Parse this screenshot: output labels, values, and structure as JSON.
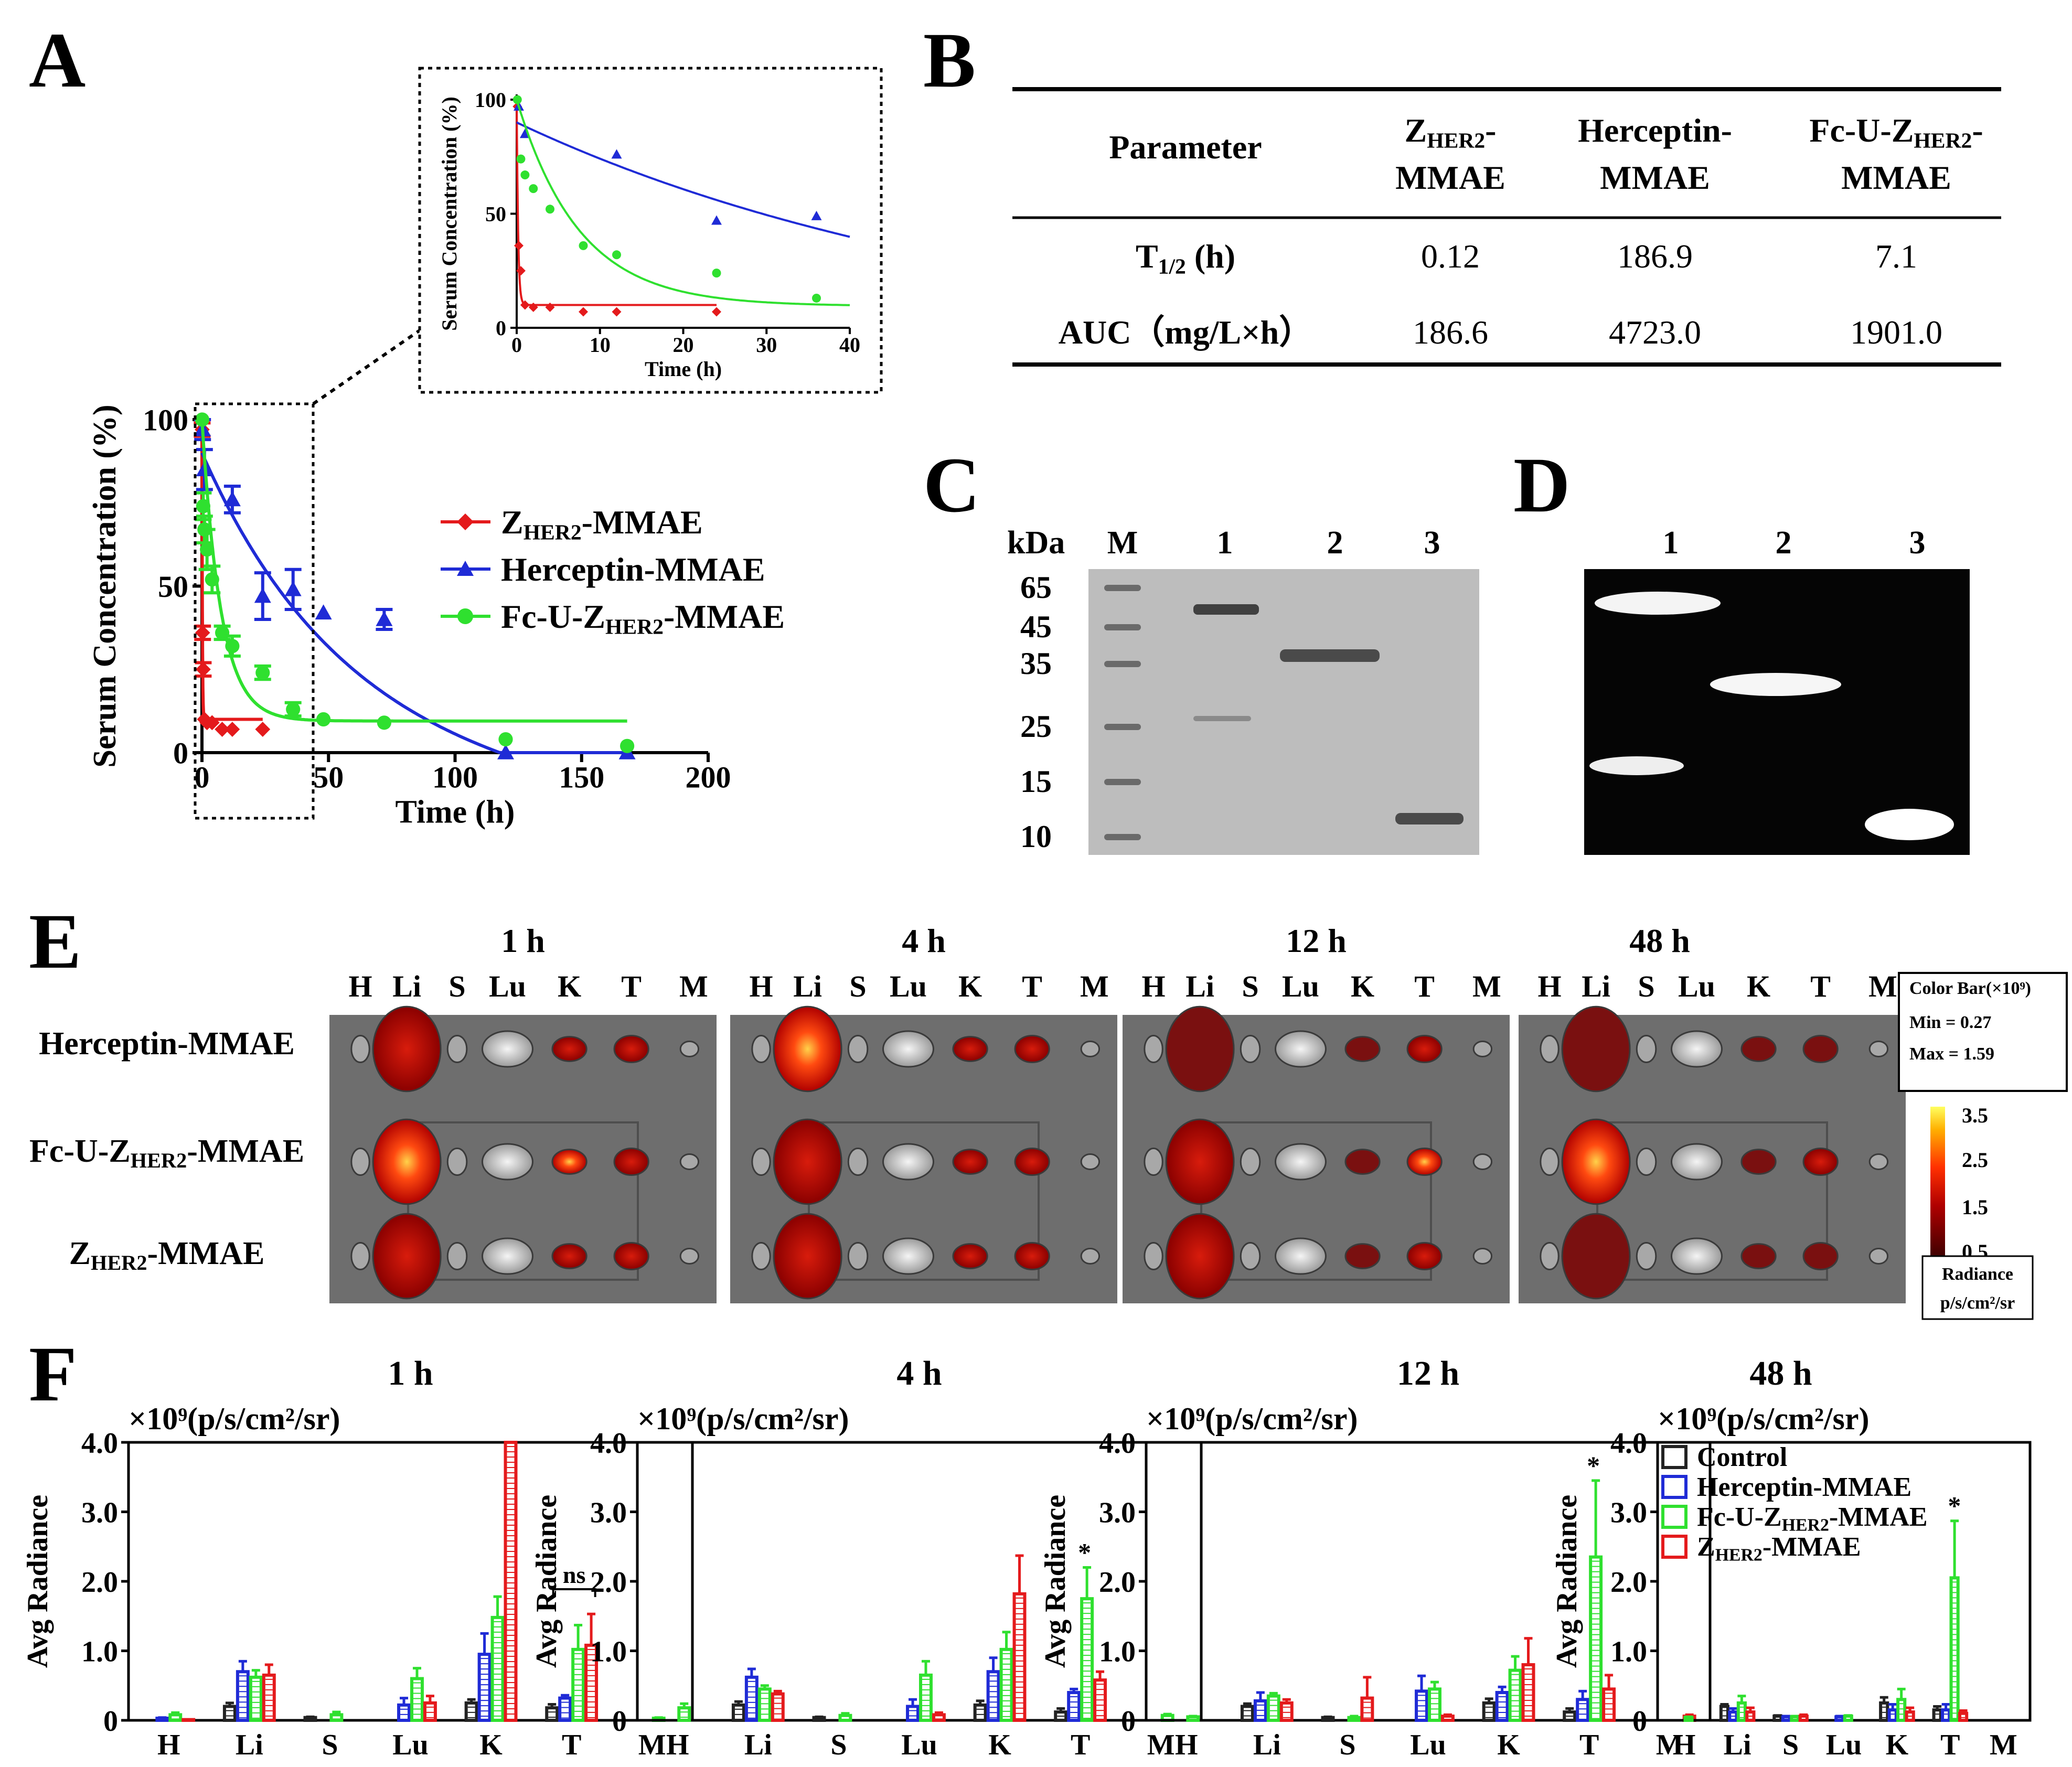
{
  "panels": {
    "A": "A",
    "B": "B",
    "C": "C",
    "D": "D",
    "E": "E",
    "F": "F"
  },
  "colors": {
    "z": "#e41a1c",
    "herc": "#1f2bd6",
    "fc": "#2fe02f",
    "control": "#222222"
  },
  "chart_data": [
    {
      "id": "A-main",
      "type": "scatter",
      "title": "",
      "xlabel": "Time (h)",
      "ylabel": "Serum Concentration (%)",
      "xlim": [
        0,
        200
      ],
      "ylim": [
        0,
        100
      ],
      "xticks": [
        "0",
        "50",
        "100",
        "150",
        "200"
      ],
      "yticks": [
        "0",
        "50",
        "100"
      ],
      "series": [
        {
          "name": "ZHER2-MMAE",
          "color": "#e41a1c",
          "x": [
            0.08,
            0.25,
            0.5,
            1,
            2,
            4,
            8,
            12,
            24
          ],
          "y": [
            97,
            36,
            25,
            10,
            9,
            9,
            7,
            7,
            7
          ],
          "err": [
            2,
            2,
            2,
            1,
            1,
            0.5,
            0.5,
            0.5,
            0.5
          ]
        },
        {
          "name": "Herceptin-MMAE",
          "color": "#1f2bd6",
          "x": [
            0.25,
            1,
            12,
            24,
            36,
            48,
            72,
            120,
            168
          ],
          "y": [
            97,
            85,
            76,
            47,
            49,
            42,
            40,
            0,
            0
          ],
          "err": [
            3,
            6,
            4,
            7,
            6,
            0,
            3,
            0,
            0
          ]
        },
        {
          "name": "Fc-U-ZHER2-MMAE",
          "color": "#2fe02f",
          "x": [
            0.08,
            0.5,
            1,
            2,
            4,
            8,
            12,
            24,
            36,
            48,
            72,
            120,
            168
          ],
          "y": [
            100,
            74,
            67,
            61,
            52,
            36,
            32,
            24,
            13,
            10,
            9,
            4,
            2
          ],
          "err": [
            1,
            4,
            4,
            6,
            4,
            2,
            3,
            2,
            2,
            0,
            0,
            0,
            0
          ]
        }
      ]
    },
    {
      "id": "A-inset",
      "type": "scatter",
      "xlabel": "Time (h)",
      "ylabel": "Serum Concentration (%)",
      "xlim": [
        0,
        40
      ],
      "ylim": [
        0,
        100
      ],
      "xticks": [
        "0",
        "10",
        "20",
        "30",
        "40"
      ],
      "yticks": [
        "0",
        "50",
        "100"
      ],
      "series": [
        {
          "name": "ZHER2-MMAE",
          "x": [
            0.08,
            0.25,
            0.5,
            1,
            2,
            4,
            8,
            12,
            24
          ],
          "y": [
            97,
            36,
            25,
            10,
            9,
            9,
            7,
            7,
            7
          ]
        },
        {
          "name": "Herceptin-MMAE",
          "x": [
            0.25,
            1,
            12,
            24,
            36
          ],
          "y": [
            97,
            85,
            76,
            47,
            49
          ]
        },
        {
          "name": "Fc-U-ZHER2-MMAE",
          "x": [
            0.08,
            0.5,
            1,
            2,
            4,
            8,
            12,
            24,
            36
          ],
          "y": [
            100,
            74,
            67,
            61,
            52,
            36,
            32,
            24,
            13
          ]
        }
      ]
    },
    {
      "id": "F",
      "type": "bar",
      "ylabel": "Avg Radiance",
      "unit": "×10⁹(p/s/cm²/sr)",
      "ylim": [
        0,
        4
      ],
      "yticks": [
        "0",
        "1.0",
        "2.0",
        "3.0",
        "4.0"
      ],
      "categories": [
        "H",
        "Li",
        "S",
        "Lu",
        "K",
        "T",
        "M"
      ],
      "series_names": [
        "Control",
        "Herceptin-MMAE",
        "Fc-U-ZHER2-MMAE",
        "ZHER2-MMAE"
      ],
      "panels": [
        {
          "title": "1 h",
          "values": [
            [
              0,
              0.03,
              0.08,
              0.01
            ],
            [
              0.2,
              0.7,
              0.62,
              0.65
            ],
            [
              0.04,
              0,
              0.08,
              0
            ],
            [
              0,
              0.22,
              0.6,
              0.25
            ],
            [
              0.25,
              0.95,
              1.48,
              4.0
            ],
            [
              0.18,
              0.32,
              1.02,
              1.08
            ],
            [
              0,
              0,
              0.03,
              0
            ]
          ],
          "errors": [
            [
              0,
              0.01,
              0.03,
              0
            ],
            [
              0.05,
              0.15,
              0.1,
              0.15
            ],
            [
              0.01,
              0,
              0.04,
              0
            ],
            [
              0,
              0.1,
              0.15,
              0.1
            ],
            [
              0.05,
              0.3,
              0.3,
              0
            ],
            [
              0.05,
              0.04,
              0.35,
              0.45
            ],
            [
              0,
              0,
              0.01,
              0
            ]
          ],
          "annotation": "ns"
        },
        {
          "title": "4 h",
          "values": [
            [
              0,
              0,
              0.18,
              0
            ],
            [
              0.22,
              0.62,
              0.45,
              0.38
            ],
            [
              0.04,
              0,
              0.07,
              0
            ],
            [
              0,
              0.2,
              0.65,
              0.08
            ],
            [
              0.22,
              0.7,
              1.02,
              1.82
            ],
            [
              0.12,
              0.4,
              1.75,
              0.58
            ],
            [
              0,
              0,
              0.07,
              0
            ]
          ],
          "errors": [
            [
              0,
              0,
              0.06,
              0
            ],
            [
              0.05,
              0.12,
              0.05,
              0.04
            ],
            [
              0.01,
              0,
              0.03,
              0
            ],
            [
              0,
              0.1,
              0.2,
              0.03
            ],
            [
              0.06,
              0.2,
              0.25,
              0.55
            ],
            [
              0.05,
              0.05,
              0.45,
              0.12
            ],
            [
              0,
              0,
              0.02,
              0
            ]
          ],
          "annotation": "*"
        },
        {
          "title": "12 h",
          "values": [
            [
              0,
              0,
              0.05,
              0
            ],
            [
              0.2,
              0.28,
              0.35,
              0.25
            ],
            [
              0.04,
              0,
              0.04,
              0.32
            ],
            [
              0,
              0.42,
              0.45,
              0.06
            ],
            [
              0.25,
              0.4,
              0.72,
              0.8
            ],
            [
              0.12,
              0.3,
              2.35,
              0.45
            ],
            [
              0,
              0,
              0,
              0.06
            ]
          ],
          "errors": [
            [
              0,
              0,
              0.01,
              0
            ],
            [
              0.04,
              0.12,
              0.04,
              0.05
            ],
            [
              0.01,
              0,
              0.02,
              0.3
            ],
            [
              0,
              0.22,
              0.1,
              0.02
            ],
            [
              0.06,
              0.08,
              0.2,
              0.38
            ],
            [
              0.05,
              0.12,
              1.1,
              0.2
            ],
            [
              0,
              0,
              0,
              0.02
            ]
          ],
          "annotation": "*"
        },
        {
          "title": "48 h",
          "values": [
            [
              0,
              0,
              0.04,
              0
            ],
            [
              0.2,
              0.12,
              0.25,
              0.12
            ],
            [
              0.06,
              0.05,
              0.05,
              0.06
            ],
            [
              0,
              0.05,
              0.06,
              0
            ],
            [
              0.25,
              0.15,
              0.3,
              0.12
            ],
            [
              0.15,
              0.15,
              2.05,
              0.1
            ],
            [
              0,
              0,
              0,
              0
            ]
          ],
          "errors": [
            [
              0,
              0,
              0.01,
              0
            ],
            [
              0.03,
              0.05,
              0.1,
              0.06
            ],
            [
              0.01,
              0.01,
              0.01,
              0.02
            ],
            [
              0,
              0.01,
              0.01,
              0
            ],
            [
              0.08,
              0.08,
              0.15,
              0.06
            ],
            [
              0.05,
              0.08,
              0.82,
              0.04
            ],
            [
              0,
              0,
              0,
              0
            ]
          ],
          "annotation": "*"
        }
      ]
    }
  ],
  "legendA": [
    "ZHER2-MMAE",
    "Herceptin-MMAE",
    "Fc-U-ZHER2-MMAE"
  ],
  "table": {
    "head": [
      "Parameter",
      "ZHER2-\nMMAE",
      "Herceptin-\nMMAE",
      "Fc-U-ZHER2-\nMMAE"
    ],
    "rows": [
      {
        "label": "T1/2 (h)",
        "values": [
          "0.12",
          "186.9",
          "7.1"
        ]
      },
      {
        "label": "AUC（mg/L×h）",
        "values": [
          "186.6",
          "4723.0",
          "1901.0"
        ]
      }
    ]
  },
  "gelC": {
    "kda": "kDa",
    "lanes": [
      "M",
      "1",
      "2",
      "3"
    ],
    "markers": [
      "65",
      "45",
      "35",
      "25",
      "15",
      "10"
    ]
  },
  "gelD": {
    "lanes": [
      "1",
      "2",
      "3"
    ]
  },
  "panelE": {
    "times": [
      "1 h",
      "4 h",
      "12 h",
      "48 h"
    ],
    "organs": [
      "H",
      "Li",
      "S",
      "Lu",
      "K",
      "T",
      "M"
    ],
    "rows": [
      "Herceptin-MMAE",
      "Fc-U-ZHER2-MMAE",
      "ZHER2-MMAE"
    ],
    "colorbar": {
      "title": "Color Bar(×10⁹)",
      "min": "Min = 0.27",
      "max": "Max = 1.59",
      "ticks": [
        "3.5",
        "2.5",
        "1.5",
        "0.5"
      ],
      "label1": "Radiance",
      "label2": "p/s/cm²/sr"
    }
  },
  "legendF": [
    "Control",
    "Herceptin-MMAE",
    "Fc-U-ZHER2-MMAE",
    "ZHER2-MMAE"
  ]
}
